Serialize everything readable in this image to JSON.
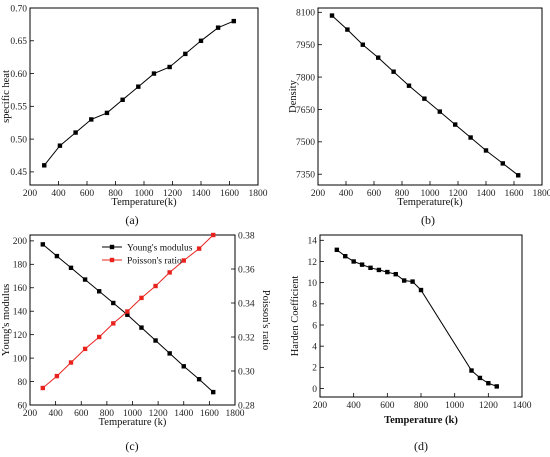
{
  "chart_data": [
    {
      "id": "a",
      "type": "line",
      "panel_label": "(a)",
      "xlabel": "Temperature(k)",
      "ylabel": "specific heat",
      "xlim": [
        200,
        1800
      ],
      "ylim": [
        0.43,
        0.7
      ],
      "xticks": [
        "200",
        "400",
        "600",
        "800",
        "1000",
        "1200",
        "1400",
        "1600",
        "1800"
      ],
      "yticks": [
        "0.45",
        "0.50",
        "0.55",
        "0.60",
        "0.65",
        "0.70"
      ],
      "series": [
        {
          "color": "#000000",
          "marker": "square",
          "x": [
            300,
            410,
            520,
            630,
            740,
            850,
            960,
            1070,
            1180,
            1290,
            1400,
            1520,
            1630
          ],
          "y": [
            0.46,
            0.49,
            0.51,
            0.53,
            0.54,
            0.56,
            0.58,
            0.6,
            0.61,
            0.63,
            0.65,
            0.67,
            0.68
          ]
        }
      ]
    },
    {
      "id": "b",
      "type": "line",
      "panel_label": "(b)",
      "xlabel": "Temperature(k)",
      "ylabel": "Density",
      "xlim": [
        200,
        1800
      ],
      "ylim": [
        7300,
        8120
      ],
      "xticks": [
        "200",
        "400",
        "600",
        "800",
        "1000",
        "1200",
        "1400",
        "1600",
        "1800"
      ],
      "yticks": [
        "7350",
        "7500",
        "7650",
        "7800",
        "7950",
        "8100"
      ],
      "series": [
        {
          "color": "#000000",
          "marker": "square",
          "x": [
            300,
            410,
            520,
            630,
            740,
            850,
            960,
            1070,
            1180,
            1290,
            1400,
            1520,
            1630
          ],
          "y": [
            8085,
            8020,
            7950,
            7890,
            7825,
            7760,
            7700,
            7640,
            7580,
            7520,
            7460,
            7400,
            7345
          ]
        }
      ]
    },
    {
      "id": "c",
      "type": "line",
      "panel_label": "(c)",
      "xlabel": "Temperature (k)",
      "ylabel": "Young's modulus",
      "ylabel_right": "Poisson's ratio",
      "xlim": [
        200,
        1800
      ],
      "ylim": [
        60,
        205
      ],
      "ylim_right": [
        0.28,
        0.38
      ],
      "xticks": [
        "200",
        "400",
        "600",
        "800",
        "1000",
        "1200",
        "1400",
        "1600",
        "1800"
      ],
      "yticks": [
        "60",
        "80",
        "100",
        "120",
        "140",
        "160",
        "180",
        "200"
      ],
      "yticks_right": [
        "0.28",
        "0.30",
        "0.32",
        "0.34",
        "0.36",
        "0.38"
      ],
      "legend_position": "top-center",
      "series": [
        {
          "name": "Young's modulus",
          "axis": "left",
          "color": "#000000",
          "marker": "square",
          "x": [
            300,
            410,
            520,
            630,
            740,
            850,
            960,
            1070,
            1180,
            1290,
            1400,
            1520,
            1630
          ],
          "y": [
            197,
            187,
            177,
            167,
            157,
            147,
            137,
            126,
            115,
            104,
            93,
            82,
            71
          ]
        },
        {
          "name": "Poisson's ratio",
          "axis": "right",
          "color": "#e8231e",
          "marker": "square",
          "x": [
            300,
            410,
            520,
            630,
            740,
            850,
            960,
            1070,
            1180,
            1290,
            1400,
            1520,
            1630
          ],
          "y": [
            0.29,
            0.297,
            0.305,
            0.313,
            0.32,
            0.328,
            0.335,
            0.343,
            0.35,
            0.358,
            0.365,
            0.372,
            0.38
          ]
        }
      ]
    },
    {
      "id": "d",
      "type": "line",
      "panel_label": "(d)",
      "xlabel": "Temperature (k)",
      "ylabel": "Harden Coefficient",
      "xlim": [
        200,
        1400
      ],
      "ylim": [
        -0.8,
        14.5
      ],
      "xticks": [
        "200",
        "400",
        "600",
        "800",
        "1000",
        "1200",
        "1400"
      ],
      "yticks": [
        "0",
        "2",
        "4",
        "6",
        "8",
        "10",
        "12",
        "14"
      ],
      "series": [
        {
          "color": "#000000",
          "marker": "square",
          "x": [
            300,
            350,
            400,
            450,
            500,
            550,
            600,
            650,
            700,
            750,
            800,
            1100,
            1150,
            1200,
            1250
          ],
          "y": [
            13.1,
            12.5,
            12.0,
            11.7,
            11.4,
            11.2,
            11.0,
            10.8,
            10.2,
            10.1,
            9.3,
            1.7,
            1.0,
            0.5,
            0.2
          ]
        }
      ]
    }
  ]
}
